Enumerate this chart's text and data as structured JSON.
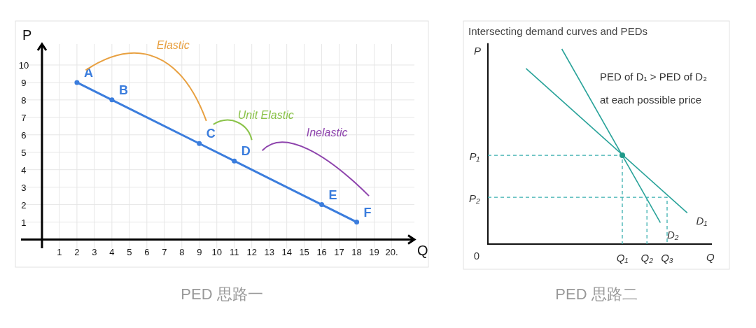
{
  "chart_data": [
    {
      "type": "line",
      "title": "PED 思路一",
      "xlabel": "Q",
      "ylabel": "P",
      "x": [
        2,
        4,
        9,
        11,
        16,
        18
      ],
      "series": [
        {
          "color": "#3b7ddd",
          "values": [
            9,
            8,
            5.5,
            4.5,
            2,
            1
          ]
        }
      ],
      "xlim": [
        -1.2,
        21.3
      ],
      "ylim": [
        -0.5,
        11.2
      ],
      "xticks": [
        1,
        2,
        3,
        4,
        5,
        6,
        7,
        8,
        9,
        10,
        11,
        12,
        13,
        14,
        15,
        16,
        17,
        18,
        19,
        {
          "value": 20,
          "label": "20."
        }
      ],
      "yticks": [
        1,
        2,
        3,
        4,
        5,
        6,
        7,
        8,
        9,
        10
      ],
      "grid": true,
      "marker": "circle",
      "annotations": [
        {
          "text": "A",
          "x": 2,
          "y": 9
        },
        {
          "text": "B",
          "x": 4,
          "y": 8
        },
        {
          "text": "C",
          "x": 9,
          "y": 5.5
        },
        {
          "text": "D",
          "x": 11,
          "y": 4.5
        },
        {
          "text": "E",
          "x": 16,
          "y": 2
        },
        {
          "text": "F",
          "x": 18,
          "y": 1
        },
        "Elastic",
        "Unit Elastic",
        "Inelastic"
      ]
    },
    {
      "type": "other",
      "title": "PED 思路二",
      "subtitle": "Intersecting demand curves and PEDs",
      "xlabel": "Q",
      "ylabel": "P",
      "annotations": [
        "PED of D₁ > PED of D₂",
        "at each possible price",
        "0",
        "P₁",
        "P₂",
        "Q₁",
        "Q₂",
        "Q₃",
        "D₁",
        "D₂"
      ]
    }
  ]
}
